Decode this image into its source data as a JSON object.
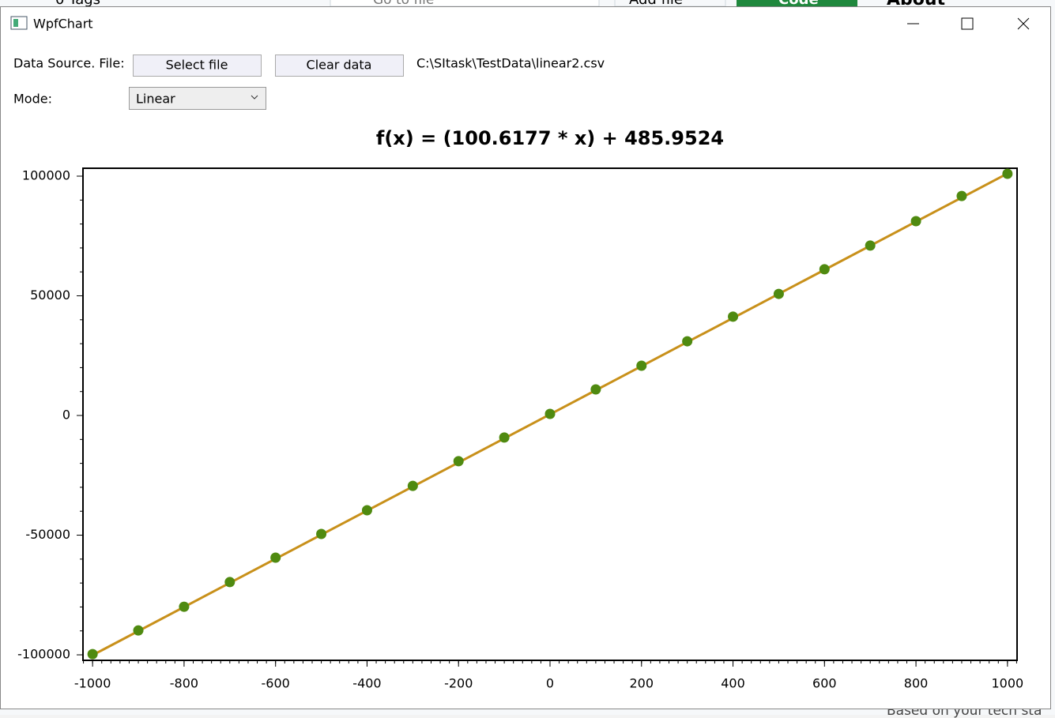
{
  "background": {
    "texts": [
      "0 Tags",
      "Go to file",
      "Add file",
      "Code",
      "About",
      "Based on your tech sta"
    ]
  },
  "window": {
    "title": "WpfChart",
    "source_label": "Data Source. File:",
    "select_button": "Select file",
    "clear_button": "Clear data",
    "file_path": "C:\\SItask\\TestData\\linear2.csv",
    "mode_label": "Mode:",
    "mode_value": "Linear"
  },
  "chart_data": {
    "type": "scatter",
    "title": "f(x) = (100.6177 * x) + 485.9524",
    "series": [
      {
        "color": "#4f8a10",
        "x": [
          -1000,
          -900,
          -800,
          -700,
          -600,
          -500,
          -400,
          -300,
          -200,
          -100,
          0,
          100,
          200,
          300,
          400,
          500,
          600,
          700,
          800,
          900,
          1000
        ],
        "values": [
          -99700,
          -89800,
          -79900,
          -69600,
          -59400,
          -49500,
          -39600,
          -29400,
          -19100,
          -9200,
          660,
          10900,
          20800,
          31000,
          41300,
          50800,
          61100,
          71000,
          81200,
          91700,
          101000
        ]
      },
      {
        "color": "#c8901a",
        "line": true,
        "x": [
          -1000,
          1000
        ],
        "values": [
          -100131.75,
          101103.65
        ]
      }
    ],
    "xlim": [
      -1021,
      1021
    ],
    "ylim": [
      -102300,
      103300
    ],
    "xticks": [
      -1000,
      -800,
      -600,
      -400,
      -200,
      0,
      200,
      400,
      600,
      800,
      1000
    ],
    "yticks": [
      -100000,
      -50000,
      0,
      50000,
      100000
    ],
    "xminor_step": 20,
    "yminor_step": 10000
  }
}
